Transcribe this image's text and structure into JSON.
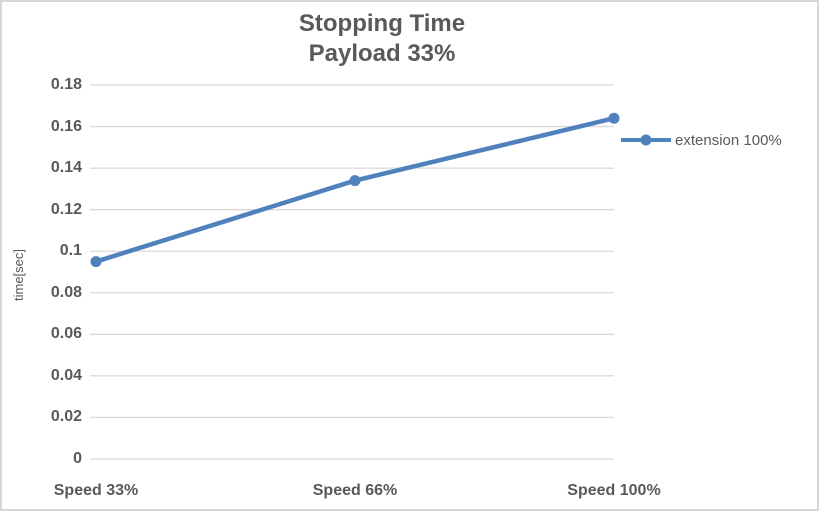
{
  "chart_data": {
    "type": "line",
    "title": "Stopping Time",
    "subtitle": "Payload 33%",
    "ylabel": "time[sec]",
    "xlabel": "",
    "categories": [
      "Speed 33%",
      "Speed 66%",
      "Speed 100%"
    ],
    "series": [
      {
        "name": "extension 100%",
        "values": [
          0.095,
          0.134,
          0.164
        ]
      }
    ],
    "ylim": [
      0,
      0.18
    ],
    "y_ticks": [
      0,
      0.02,
      0.04,
      0.06,
      0.08,
      0.1,
      0.12,
      0.14,
      0.16,
      0.18
    ],
    "grid": true,
    "legend_position": "right",
    "colors": {
      "series": "#4F81BD",
      "text": "#595959",
      "gridline": "#D9D9D9",
      "border": "#D7D7D7"
    }
  }
}
